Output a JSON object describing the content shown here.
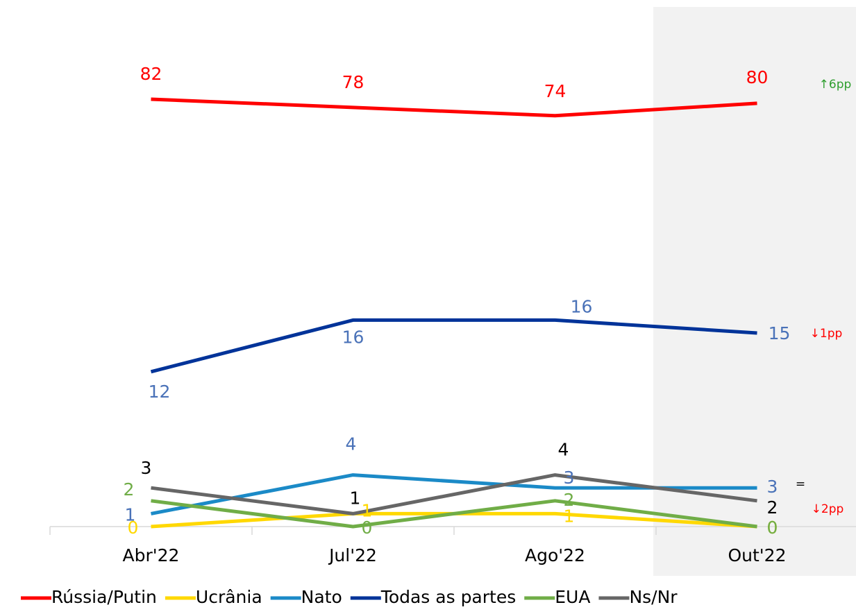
{
  "chart_data": {
    "type": "line",
    "categories": [
      "Abr'22",
      "Jul'22",
      "Ago'22",
      "Out'22"
    ],
    "ylim": [
      0,
      40
    ],
    "y2lim": [
      -125,
      125
    ],
    "series": [
      {
        "name": "Rússia/Putin",
        "color": "#ff0000",
        "label_color": "#ff0000",
        "axis": "y2",
        "values": [
          82,
          78,
          74,
          80
        ]
      },
      {
        "name": "Ucrânia",
        "color": "#ffd800",
        "label_color": "#ffd800",
        "values": [
          0,
          1,
          1,
          0
        ]
      },
      {
        "name": "Nato",
        "color": "#1b8ac7",
        "label_color": "#4a72b8",
        "values": [
          1,
          4,
          3,
          3
        ]
      },
      {
        "name": "Todas as partes",
        "color": "#003399",
        "label_color": "#4a72b8",
        "values": [
          12,
          16,
          16,
          15
        ]
      },
      {
        "name": "EUA",
        "color": "#70ad47",
        "label_color": "#70ad47",
        "values": [
          2,
          0,
          2,
          0
        ]
      },
      {
        "name": "Ns/Nr",
        "color": "#666666",
        "label_color": "#000000",
        "values": [
          3,
          1,
          4,
          2
        ]
      }
    ],
    "annotations": [
      {
        "text": "↑6pp",
        "color": "#2e9e2e"
      },
      {
        "text": "↓1pp",
        "color": "#ff0000"
      },
      {
        "text": "=",
        "color": "#000000"
      },
      {
        "text": "↓2pp",
        "color": "#ff0000"
      }
    ],
    "highlight": "Out'22"
  }
}
